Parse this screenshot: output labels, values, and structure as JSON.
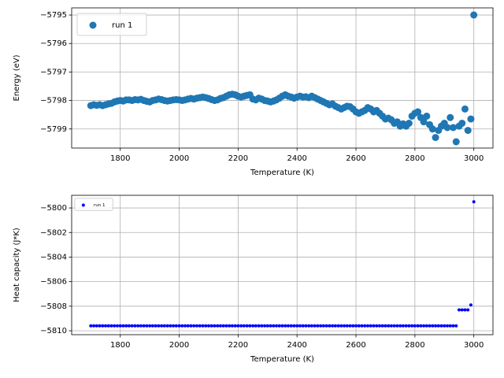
{
  "chart_data": [
    {
      "type": "scatter",
      "xlabel": "Temperature (K)",
      "ylabel": "Energy (eV)",
      "xlim": [
        1635,
        3065
      ],
      "ylim": [
        -5799.67,
        -5794.75
      ],
      "xticks": [
        1800,
        2000,
        2200,
        2400,
        2600,
        2800,
        3000
      ],
      "yticks": [
        {
          "value": -5799,
          "label": "−5799"
        },
        {
          "value": -5798,
          "label": "−5798"
        },
        {
          "value": -5797,
          "label": "−5797"
        },
        {
          "value": -5796,
          "label": "−5796"
        },
        {
          "value": -5795,
          "label": "−5795"
        }
      ],
      "grid": true,
      "legend": "upper left",
      "x": [
        1700,
        1710,
        1720,
        1730,
        1740,
        1750,
        1760,
        1770,
        1780,
        1790,
        1800,
        1810,
        1820,
        1830,
        1840,
        1850,
        1860,
        1870,
        1880,
        1890,
        1900,
        1910,
        1920,
        1930,
        1940,
        1950,
        1960,
        1970,
        1980,
        1990,
        2000,
        2010,
        2020,
        2030,
        2040,
        2050,
        2060,
        2070,
        2080,
        2090,
        2100,
        2110,
        2120,
        2130,
        2140,
        2150,
        2160,
        2170,
        2180,
        2190,
        2200,
        2210,
        2220,
        2230,
        2240,
        2250,
        2260,
        2270,
        2280,
        2290,
        2300,
        2310,
        2320,
        2330,
        2340,
        2350,
        2360,
        2370,
        2380,
        2390,
        2400,
        2410,
        2420,
        2430,
        2440,
        2450,
        2460,
        2470,
        2480,
        2490,
        2500,
        2510,
        2520,
        2530,
        2540,
        2550,
        2560,
        2570,
        2580,
        2590,
        2600,
        2610,
        2620,
        2630,
        2640,
        2650,
        2660,
        2670,
        2680,
        2690,
        2700,
        2710,
        2720,
        2730,
        2740,
        2750,
        2760,
        2770,
        2780,
        2790,
        2800,
        2810,
        2820,
        2830,
        2840,
        2850,
        2860,
        2870,
        2880,
        2890,
        2900,
        2910,
        2920,
        2930,
        2940,
        2950,
        2960,
        2970,
        2980,
        2990,
        3000
      ],
      "series": [
        {
          "name": "run 1",
          "color": "#1f77b4",
          "markersize": 4.5,
          "values": [
            -5798.18,
            -5798.15,
            -5798.17,
            -5798.15,
            -5798.18,
            -5798.15,
            -5798.12,
            -5798.1,
            -5798.05,
            -5798.02,
            -5798.0,
            -5798.02,
            -5797.98,
            -5797.98,
            -5798.0,
            -5797.97,
            -5797.98,
            -5797.96,
            -5798.0,
            -5798.03,
            -5798.05,
            -5798.0,
            -5797.98,
            -5797.95,
            -5797.97,
            -5798.0,
            -5798.02,
            -5798.0,
            -5797.98,
            -5797.97,
            -5797.98,
            -5798.0,
            -5797.98,
            -5797.95,
            -5797.93,
            -5797.95,
            -5797.92,
            -5797.9,
            -5797.88,
            -5797.9,
            -5797.93,
            -5797.97,
            -5798.0,
            -5797.98,
            -5797.93,
            -5797.9,
            -5797.85,
            -5797.8,
            -5797.78,
            -5797.8,
            -5797.85,
            -5797.88,
            -5797.85,
            -5797.82,
            -5797.8,
            -5797.95,
            -5797.98,
            -5797.92,
            -5797.95,
            -5798.0,
            -5798.02,
            -5798.05,
            -5798.02,
            -5797.98,
            -5797.92,
            -5797.85,
            -5797.8,
            -5797.85,
            -5797.88,
            -5797.92,
            -5797.88,
            -5797.85,
            -5797.88,
            -5797.87,
            -5797.9,
            -5797.85,
            -5797.9,
            -5797.95,
            -5798.0,
            -5798.05,
            -5798.1,
            -5798.15,
            -5798.12,
            -5798.2,
            -5798.25,
            -5798.3,
            -5798.25,
            -5798.2,
            -5798.22,
            -5798.3,
            -5798.4,
            -5798.45,
            -5798.4,
            -5798.35,
            -5798.25,
            -5798.3,
            -5798.4,
            -5798.35,
            -5798.45,
            -5798.55,
            -5798.65,
            -5798.62,
            -5798.68,
            -5798.8,
            -5798.75,
            -5798.9,
            -5798.82,
            -5798.9,
            -5798.8,
            -5798.55,
            -5798.45,
            -5798.4,
            -5798.6,
            -5798.75,
            -5798.55,
            -5798.85,
            -5799.0,
            -5799.3,
            -5799.05,
            -5798.9,
            -5798.8,
            -5798.95,
            -5798.6,
            -5798.95,
            -5799.45,
            -5798.9,
            -5798.8,
            -5798.3,
            -5799.05,
            -5798.65,
            -5795.0
          ]
        }
      ]
    },
    {
      "type": "scatter",
      "xlabel": "Temperature (K)",
      "ylabel": "Heat capacity (J*K)",
      "xlim": [
        1635,
        3065
      ],
      "ylim": [
        -5810.32,
        -5798.97
      ],
      "xticks": [
        1800,
        2000,
        2200,
        2400,
        2600,
        2800,
        3000
      ],
      "yticks": [
        {
          "value": -5810,
          "label": "−5810"
        },
        {
          "value": -5808,
          "label": "−5808"
        },
        {
          "value": -5806,
          "label": "−5806"
        },
        {
          "value": -5804,
          "label": "−5804"
        },
        {
          "value": -5802,
          "label": "−5802"
        },
        {
          "value": -5800,
          "label": "−5800"
        }
      ],
      "grid": true,
      "legend": "upper left",
      "x": [
        1700,
        1710,
        1720,
        1730,
        1740,
        1750,
        1760,
        1770,
        1780,
        1790,
        1800,
        1810,
        1820,
        1830,
        1840,
        1850,
        1860,
        1870,
        1880,
        1890,
        1900,
        1910,
        1920,
        1930,
        1940,
        1950,
        1960,
        1970,
        1980,
        1990,
        2000,
        2010,
        2020,
        2030,
        2040,
        2050,
        2060,
        2070,
        2080,
        2090,
        2100,
        2110,
        2120,
        2130,
        2140,
        2150,
        2160,
        2170,
        2180,
        2190,
        2200,
        2210,
        2220,
        2230,
        2240,
        2250,
        2260,
        2270,
        2280,
        2290,
        2300,
        2310,
        2320,
        2330,
        2340,
        2350,
        2360,
        2370,
        2380,
        2390,
        2400,
        2410,
        2420,
        2430,
        2440,
        2450,
        2460,
        2470,
        2480,
        2490,
        2500,
        2510,
        2520,
        2530,
        2540,
        2550,
        2560,
        2570,
        2580,
        2590,
        2600,
        2610,
        2620,
        2630,
        2640,
        2650,
        2660,
        2670,
        2680,
        2690,
        2700,
        2710,
        2720,
        2730,
        2740,
        2750,
        2760,
        2770,
        2780,
        2790,
        2800,
        2810,
        2820,
        2830,
        2840,
        2850,
        2860,
        2870,
        2880,
        2890,
        2900,
        2910,
        2920,
        2930,
        2940,
        2950,
        2960,
        2970,
        2980,
        2990,
        3000
      ],
      "series": [
        {
          "name": "run 1",
          "color": "#0000ff",
          "markersize": 2,
          "values": [
            -5809.6,
            -5809.6,
            -5809.6,
            -5809.6,
            -5809.6,
            -5809.6,
            -5809.6,
            -5809.6,
            -5809.6,
            -5809.6,
            -5809.6,
            -5809.6,
            -5809.6,
            -5809.6,
            -5809.6,
            -5809.6,
            -5809.6,
            -5809.6,
            -5809.6,
            -5809.6,
            -5809.6,
            -5809.6,
            -5809.6,
            -5809.6,
            -5809.6,
            -5809.6,
            -5809.6,
            -5809.6,
            -5809.6,
            -5809.6,
            -5809.6,
            -5809.6,
            -5809.6,
            -5809.6,
            -5809.6,
            -5809.6,
            -5809.6,
            -5809.6,
            -5809.6,
            -5809.6,
            -5809.6,
            -5809.6,
            -5809.6,
            -5809.6,
            -5809.6,
            -5809.6,
            -5809.6,
            -5809.6,
            -5809.6,
            -5809.6,
            -5809.6,
            -5809.6,
            -5809.6,
            -5809.6,
            -5809.6,
            -5809.6,
            -5809.6,
            -5809.6,
            -5809.6,
            -5809.6,
            -5809.6,
            -5809.6,
            -5809.6,
            -5809.6,
            -5809.6,
            -5809.6,
            -5809.6,
            -5809.6,
            -5809.6,
            -5809.6,
            -5809.6,
            -5809.6,
            -5809.6,
            -5809.6,
            -5809.6,
            -5809.6,
            -5809.6,
            -5809.6,
            -5809.6,
            -5809.6,
            -5809.6,
            -5809.6,
            -5809.6,
            -5809.6,
            -5809.6,
            -5809.6,
            -5809.6,
            -5809.6,
            -5809.6,
            -5809.6,
            -5809.6,
            -5809.6,
            -5809.6,
            -5809.6,
            -5809.6,
            -5809.6,
            -5809.6,
            -5809.6,
            -5809.6,
            -5809.6,
            -5809.6,
            -5809.6,
            -5809.6,
            -5809.6,
            -5809.6,
            -5809.6,
            -5809.6,
            -5809.6,
            -5809.6,
            -5809.6,
            -5809.6,
            -5809.6,
            -5809.6,
            -5809.6,
            -5809.6,
            -5809.6,
            -5809.6,
            -5809.6,
            -5809.6,
            -5809.6,
            -5809.6,
            -5809.6,
            -5809.6,
            -5809.6,
            -5809.6,
            -5808.3,
            -5808.3,
            -5808.3,
            -5808.3,
            -5807.9,
            -5799.5
          ]
        }
      ]
    }
  ]
}
